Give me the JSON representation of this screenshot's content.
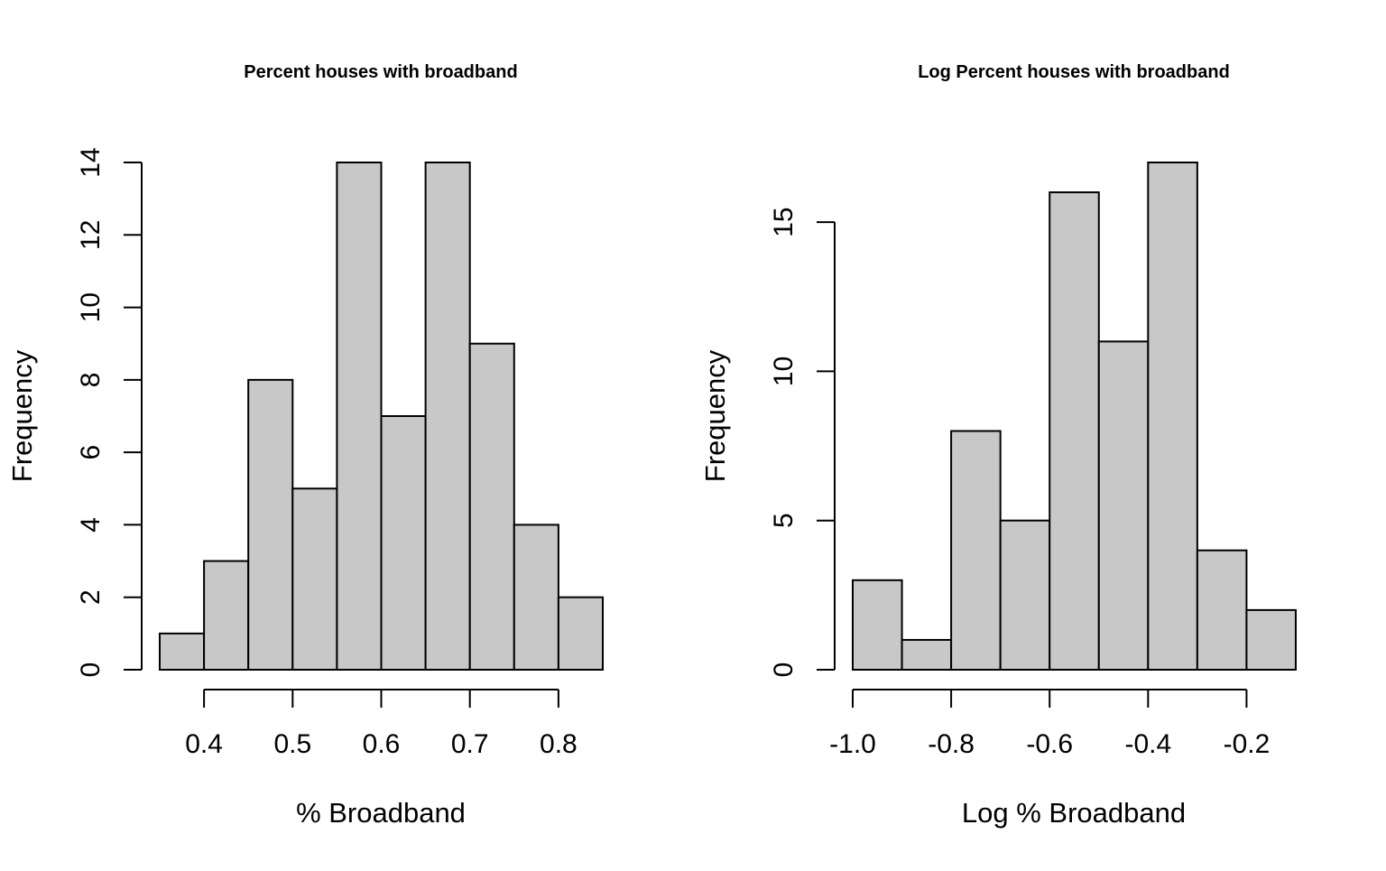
{
  "colors": {
    "bar_fill": "#c8c8c8",
    "bar_stroke": "#000000",
    "axis": "#000000",
    "background": "#ffffff"
  },
  "chart_data": [
    {
      "type": "bar",
      "title": "Percent houses with broadband",
      "xlabel": "% Broadband",
      "ylabel": "Frequency",
      "bin_edges": [
        0.35,
        0.4,
        0.45,
        0.5,
        0.55,
        0.6,
        0.65,
        0.7,
        0.75,
        0.8,
        0.85
      ],
      "values": [
        1,
        3,
        8,
        5,
        14,
        7,
        14,
        9,
        4,
        2
      ],
      "xlim": [
        0.35,
        0.85
      ],
      "ylim": [
        0,
        14
      ],
      "x_ticks": [
        0.4,
        0.5,
        0.6,
        0.7,
        0.8
      ],
      "x_tick_labels": [
        "0.4",
        "0.5",
        "0.6",
        "0.7",
        "0.8"
      ],
      "y_ticks": [
        0,
        2,
        4,
        6,
        8,
        10,
        12,
        14
      ],
      "y_tick_labels": [
        "0",
        "2",
        "4",
        "6",
        "8",
        "10",
        "12",
        "14"
      ],
      "grid": false
    },
    {
      "type": "bar",
      "title": "Log Percent houses with broadband",
      "xlabel": "Log % Broadband",
      "ylabel": "Frequency",
      "bin_edges": [
        -1.0,
        -0.9,
        -0.8,
        -0.7,
        -0.6,
        -0.5,
        -0.4,
        -0.3,
        -0.2,
        -0.1
      ],
      "values": [
        3,
        1,
        8,
        5,
        16,
        11,
        17,
        4,
        2
      ],
      "xlim": [
        -1.0,
        -0.1
      ],
      "ylim": [
        0,
        17
      ],
      "x_ticks": [
        -1.0,
        -0.8,
        -0.6,
        -0.4,
        -0.2
      ],
      "x_tick_labels": [
        "-1.0",
        "-0.8",
        "-0.6",
        "-0.4",
        "-0.2"
      ],
      "y_ticks": [
        0,
        5,
        10,
        15
      ],
      "y_tick_labels": [
        "0",
        "5",
        "10",
        "15"
      ],
      "grid": false
    }
  ]
}
